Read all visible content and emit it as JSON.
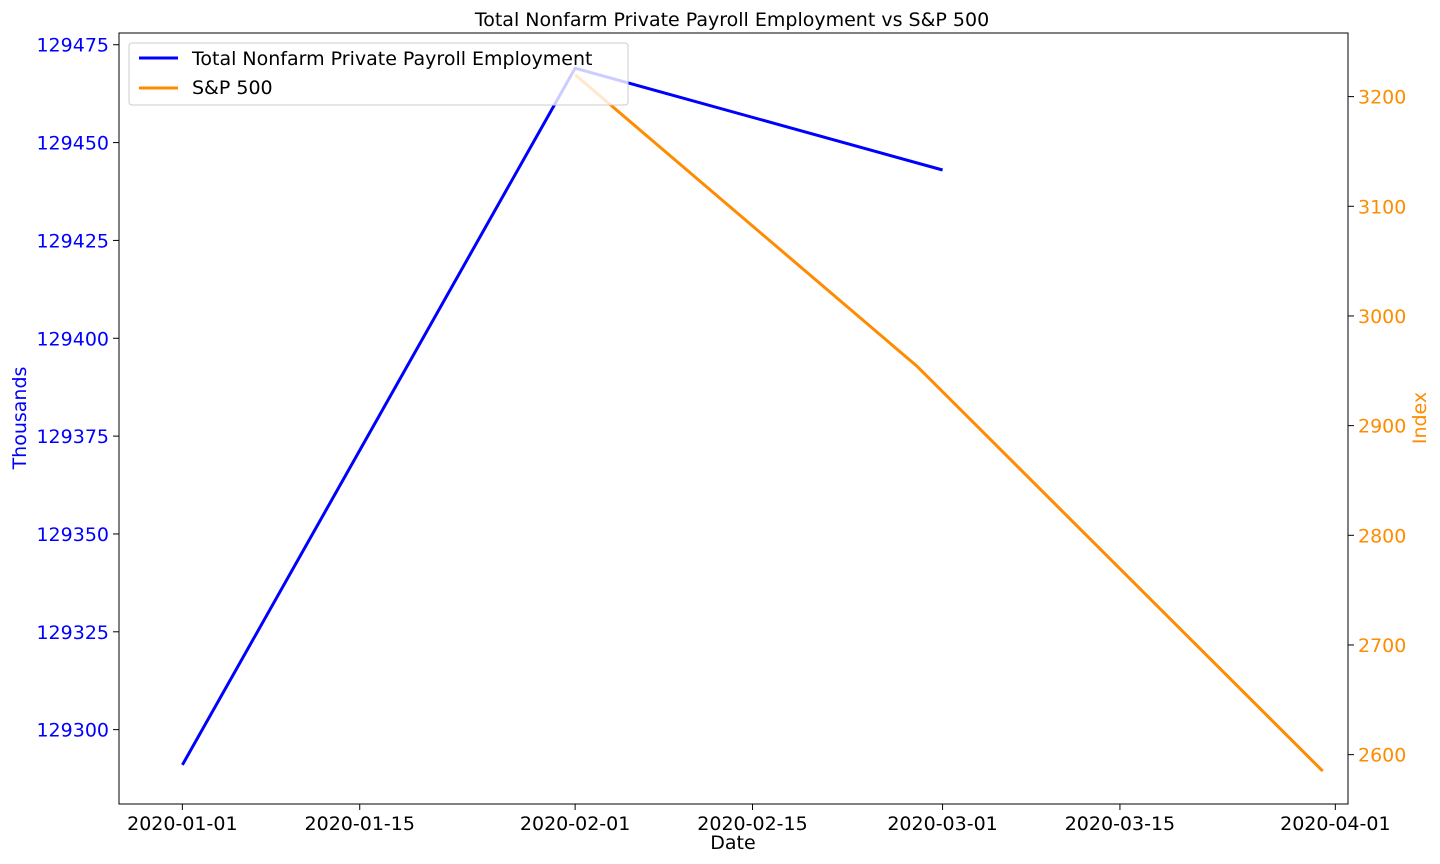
{
  "chart_data": {
    "type": "line",
    "title": "Total Nonfarm Private Payroll Employment vs S&P 500",
    "xlabel": "Date",
    "x_ticks": [
      "2020-01-01",
      "2020-01-15",
      "2020-02-01",
      "2020-02-15",
      "2020-03-01",
      "2020-03-15",
      "2020-04-01"
    ],
    "xlim": [
      "2019-12-27",
      "2020-04-02"
    ],
    "y_left": {
      "label": "Thousands",
      "color": "#0000ff",
      "ylim": [
        129281,
        129478
      ],
      "ticks": [
        "129300",
        "129325",
        "129350",
        "129375",
        "129400",
        "129425",
        "129450",
        "129475"
      ]
    },
    "y_right": {
      "label": "Index",
      "color": "#ff8c00",
      "ylim": [
        2555,
        3258
      ],
      "ticks": [
        "2600",
        "2700",
        "2800",
        "2900",
        "3000",
        "3100",
        "3200"
      ]
    },
    "grid": false,
    "legend_position": "upper-left",
    "series": [
      {
        "name": "Total Nonfarm Private Payroll Employment",
        "axis": "left",
        "color": "#0000ff",
        "x": [
          "2020-01-01",
          "2020-02-01",
          "2020-03-01"
        ],
        "y": [
          129291,
          129469,
          129443
        ]
      },
      {
        "name": "S&P 500",
        "axis": "right",
        "color": "#ff8c00",
        "x": [
          "2020-02-01",
          "2020-02-28",
          "2020-03-31"
        ],
        "y": [
          3220,
          2954,
          2585
        ]
      }
    ]
  }
}
